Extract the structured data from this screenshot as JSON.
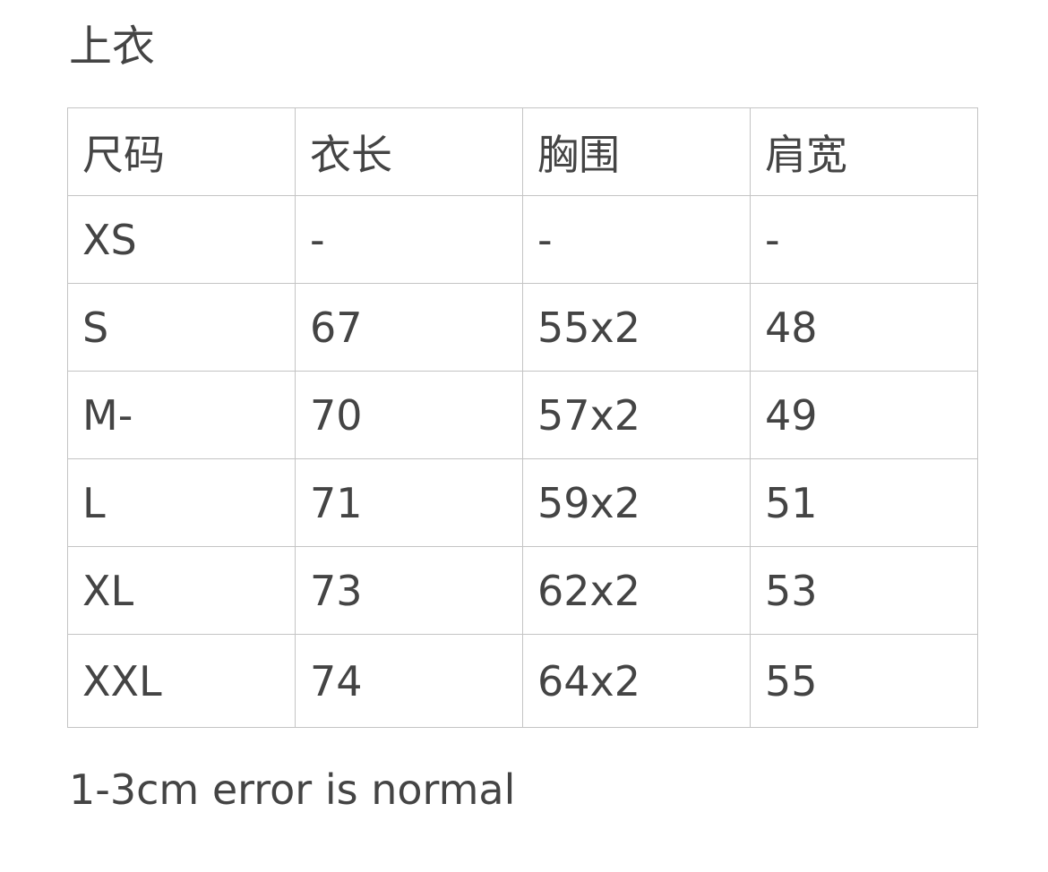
{
  "title": "上衣",
  "table": {
    "headers": [
      "尺码",
      "衣长",
      "胸围",
      "肩宽"
    ],
    "rows": [
      [
        "XS",
        "-",
        "-",
        "-"
      ],
      [
        "S",
        "67",
        "55x2",
        "48"
      ],
      [
        "M-",
        "70",
        "57x2",
        "49"
      ],
      [
        "L",
        "71",
        "59x2",
        "51"
      ],
      [
        "XL",
        "73",
        "62x2",
        "53"
      ],
      [
        "XXL",
        "74",
        "64x2",
        "55"
      ]
    ]
  },
  "note": "1-3cm error is normal"
}
